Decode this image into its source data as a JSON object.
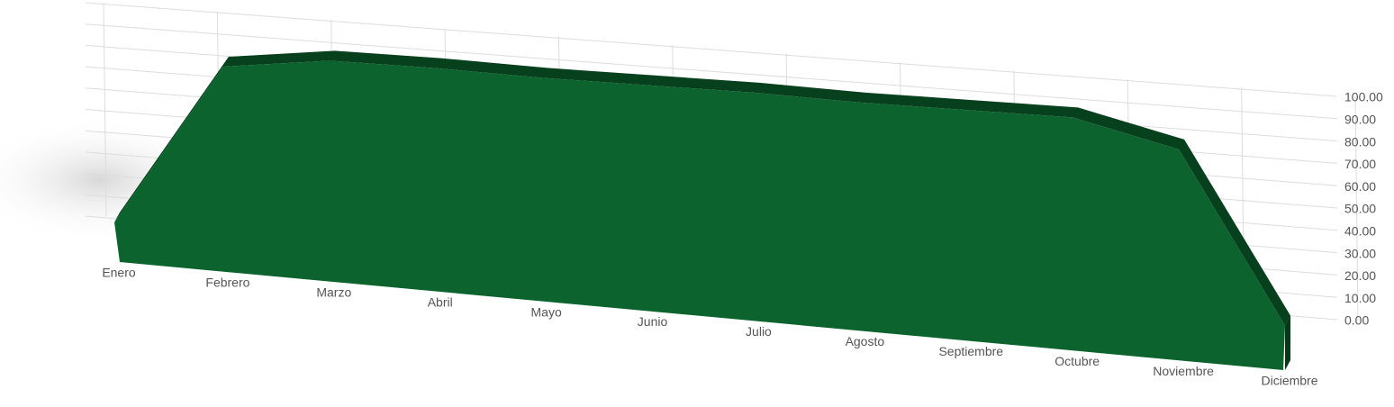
{
  "chart_data": {
    "type": "area3d",
    "categories": [
      "Enero",
      "Febrero",
      "Marzo",
      "Abril",
      "Mayo",
      "Junio",
      "Julio",
      "Agosto",
      "Septiembre",
      "Octubre",
      "Noviembre",
      "Diciembre"
    ],
    "values": [
      18,
      92,
      98,
      98,
      97,
      97,
      97,
      96,
      96,
      96,
      86,
      18
    ],
    "color": "#0c632e",
    "ylim": [
      0,
      100
    ],
    "yticks": [
      {
        "value": 0,
        "label": "0.00"
      },
      {
        "value": 10,
        "label": "10.00"
      },
      {
        "value": 20,
        "label": "20.00"
      },
      {
        "value": 30,
        "label": "30.00"
      },
      {
        "value": 40,
        "label": "40.00"
      },
      {
        "value": 50,
        "label": "50.00"
      },
      {
        "value": 60,
        "label": "60.00"
      },
      {
        "value": 70,
        "label": "70.00"
      },
      {
        "value": 80,
        "label": "80.00"
      },
      {
        "value": 90,
        "label": "90.00"
      },
      {
        "value": 100,
        "label": "100.00"
      }
    ],
    "grid": true
  }
}
